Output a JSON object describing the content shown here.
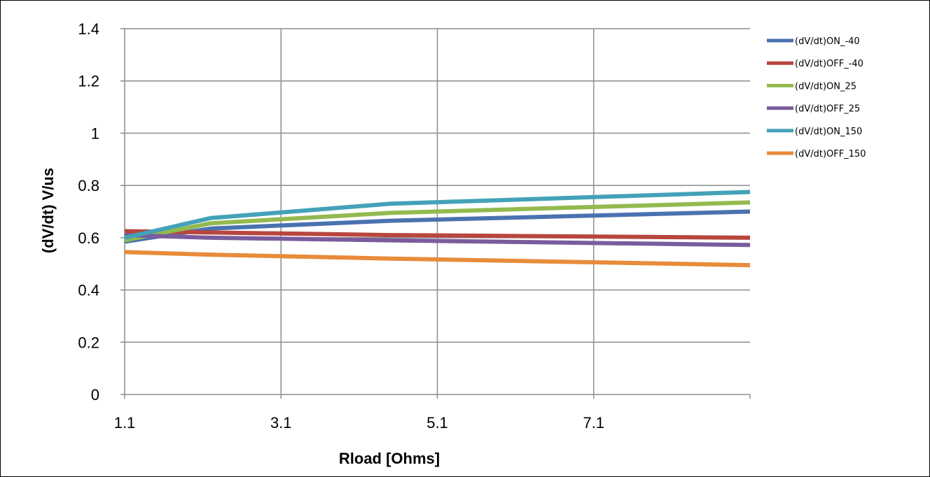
{
  "chart_data": {
    "type": "line",
    "title": "",
    "xlabel": "Rload [Ohms]",
    "ylabel": "(dV/dt)  V/us",
    "xlim": [
      1.1,
      9.1
    ],
    "ylim": [
      0,
      1.4
    ],
    "x_ticks": [
      "1.1",
      "3.1",
      "5.1",
      "7.1"
    ],
    "y_ticks": [
      "0",
      "0.2",
      "0.4",
      "0.6",
      "0.8",
      "1",
      "1.2",
      "1.4"
    ],
    "grid": true,
    "legend_position": "right",
    "series": [
      {
        "name": "(dV/dt)ON_-40",
        "color": "#4a72b0",
        "x": [
          1.1,
          2.2,
          4.5,
          9.1
        ],
        "y": [
          0.585,
          0.635,
          0.665,
          0.7
        ]
      },
      {
        "name": "(dV/dt)OFF_-40",
        "color": "#b8463f",
        "x": [
          1.1,
          2.2,
          4.5,
          9.1
        ],
        "y": [
          0.625,
          0.62,
          0.61,
          0.6
        ]
      },
      {
        "name": "(dV/dt)ON_25",
        "color": "#93b94f",
        "x": [
          1.1,
          2.2,
          4.5,
          9.1
        ],
        "y": [
          0.59,
          0.655,
          0.695,
          0.735
        ]
      },
      {
        "name": "(dV/dt)OFF_25",
        "color": "#7a5c9c",
        "x": [
          1.1,
          2.2,
          4.5,
          9.1
        ],
        "y": [
          0.61,
          0.6,
          0.59,
          0.572
        ]
      },
      {
        "name": "(dV/dt)ON_150",
        "color": "#43a2b8",
        "x": [
          1.1,
          2.2,
          4.5,
          9.1
        ],
        "y": [
          0.6,
          0.675,
          0.73,
          0.775
        ]
      },
      {
        "name": "(dV/dt)OFF_150",
        "color": "#e88b3a",
        "x": [
          1.1,
          2.2,
          4.5,
          9.1
        ],
        "y": [
          0.545,
          0.535,
          0.52,
          0.495
        ]
      }
    ]
  }
}
